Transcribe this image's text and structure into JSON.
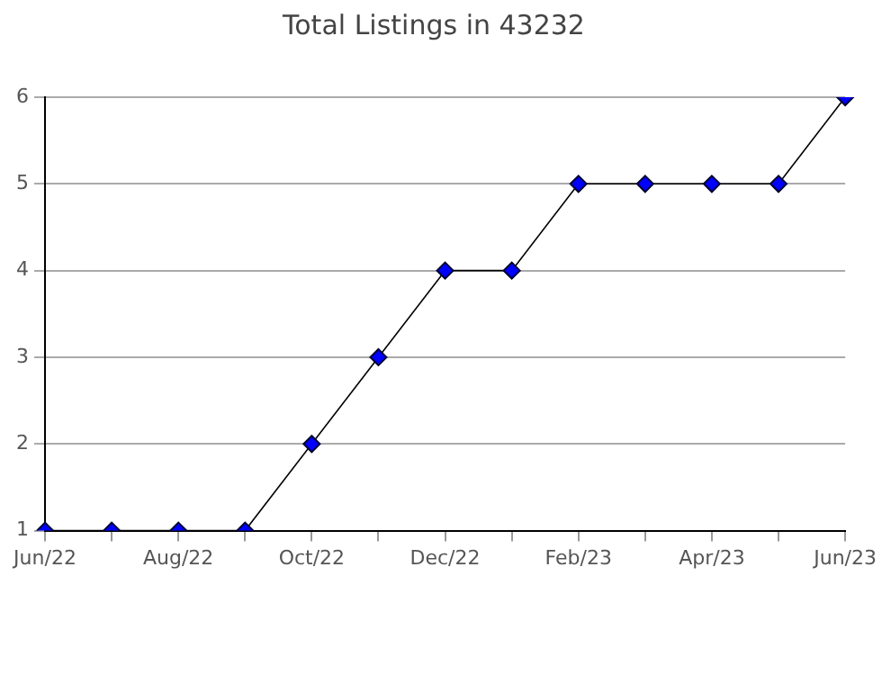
{
  "chart_data": {
    "type": "line",
    "title": "Total Listings in 43232",
    "categories": [
      "Jun/22",
      null,
      "Aug/22",
      null,
      "Oct/22",
      null,
      "Dec/22",
      null,
      "Feb/23",
      null,
      "Apr/23",
      null,
      "Jun/23"
    ],
    "series": [
      {
        "color": "#0000ff",
        "values": [
          1,
          1,
          1,
          1,
          2,
          3,
          4,
          4,
          5,
          5,
          5,
          5,
          6
        ]
      }
    ],
    "ylim": [
      1,
      6
    ],
    "yticks": [
      1,
      2,
      3,
      4,
      5,
      6
    ],
    "grid": "y",
    "legend": false,
    "marker": "diamond",
    "line_style": "solid"
  }
}
